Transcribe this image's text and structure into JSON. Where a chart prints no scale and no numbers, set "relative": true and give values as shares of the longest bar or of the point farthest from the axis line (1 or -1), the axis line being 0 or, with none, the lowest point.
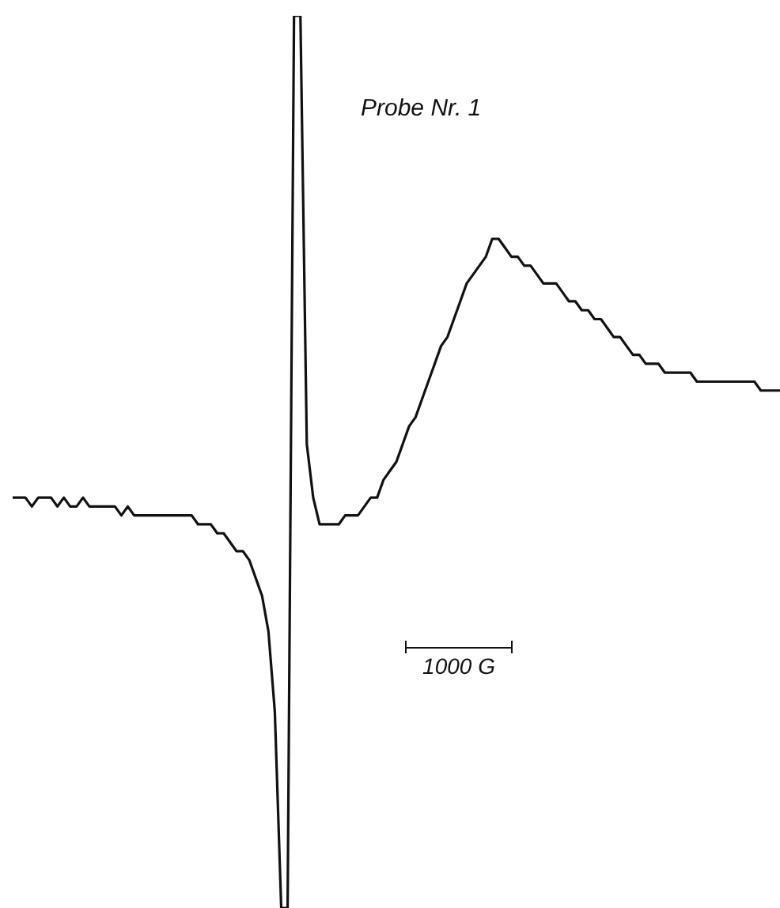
{
  "chart_data": {
    "type": "line",
    "title": "Probe Nr. 1",
    "annotations": [
      "1000 G"
    ],
    "relative": true,
    "grid": false,
    "legend": false,
    "marker": "none",
    "categories": [
      null,
      null,
      null,
      null,
      null,
      null,
      null,
      null,
      null,
      null,
      null,
      null,
      null,
      null,
      null,
      null,
      null,
      null,
      null,
      null,
      null,
      null,
      null,
      null,
      null,
      null,
      null,
      null,
      null,
      null,
      null,
      null,
      null,
      null,
      null,
      null,
      null,
      null,
      null,
      null,
      null,
      null,
      null,
      null,
      null,
      null,
      null,
      null,
      null,
      null,
      null,
      null,
      null,
      null,
      null,
      null,
      null,
      null,
      null,
      null,
      null,
      null,
      null,
      null,
      null,
      null,
      null,
      null,
      null,
      null,
      null,
      null,
      null,
      null,
      null,
      null,
      null,
      null,
      null,
      null,
      null,
      null,
      null,
      null,
      null,
      null,
      null,
      null,
      null,
      null,
      null,
      null,
      null,
      null,
      null,
      null,
      null,
      null,
      null,
      null,
      null,
      null,
      null,
      null,
      null,
      null,
      null,
      null,
      null,
      null,
      null,
      null,
      null,
      null,
      null,
      null,
      null,
      null,
      null,
      null,
      null
    ],
    "series": [
      {
        "color": "#111111",
        "values": [
          0.46,
          0.46,
          0.46,
          0.45,
          0.46,
          0.46,
          0.46,
          0.45,
          0.46,
          0.45,
          0.45,
          0.46,
          0.45,
          0.45,
          0.45,
          0.45,
          0.45,
          0.44,
          0.45,
          0.44,
          0.44,
          0.44,
          0.44,
          0.44,
          0.44,
          0.44,
          0.44,
          0.44,
          0.44,
          0.43,
          0.43,
          0.43,
          0.42,
          0.42,
          0.41,
          0.4,
          0.4,
          0.39,
          0.37,
          0.35,
          0.31,
          0.22,
          0.0,
          0.0,
          1.0,
          1.0,
          0.52,
          0.46,
          0.43,
          0.43,
          0.43,
          0.43,
          0.44,
          0.44,
          0.44,
          0.45,
          0.46,
          0.46,
          0.48,
          0.49,
          0.5,
          0.52,
          0.54,
          0.55,
          0.57,
          0.59,
          0.61,
          0.63,
          0.64,
          0.66,
          0.68,
          0.7,
          0.71,
          0.72,
          0.73,
          0.75,
          0.75,
          0.74,
          0.73,
          0.73,
          0.72,
          0.72,
          0.71,
          0.7,
          0.7,
          0.7,
          0.69,
          0.68,
          0.68,
          0.67,
          0.67,
          0.66,
          0.66,
          0.65,
          0.64,
          0.64,
          0.63,
          0.62,
          0.62,
          0.61,
          0.61,
          0.61,
          0.6,
          0.6,
          0.6,
          0.6,
          0.6,
          0.59,
          0.59,
          0.59,
          0.59,
          0.59,
          0.59,
          0.59,
          0.59,
          0.59,
          0.59,
          0.58,
          0.58,
          0.58,
          0.58
        ]
      }
    ]
  }
}
